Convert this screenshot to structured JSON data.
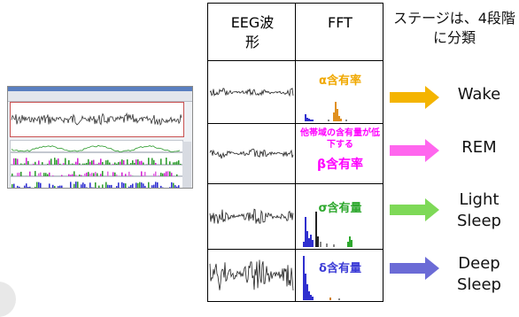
{
  "header": {
    "eeg_col": "EEG波形",
    "fft_col": "FFT"
  },
  "note": "ステージは、4段階に分類",
  "rows": [
    {
      "stage": "Wake",
      "label": "α含有率",
      "label_color": "#f0a800",
      "arrow_color": "#f4b400"
    },
    {
      "stage": "REM",
      "label_sub": "他帯域の含有量が低下する",
      "label": "β含有率",
      "label_color": "#ff00ff",
      "arrow_color": "#ff66ee"
    },
    {
      "stage": "Light Sleep",
      "label": "σ含有量",
      "label_color": "#2ea82e",
      "arrow_color": "#7ed957"
    },
    {
      "stage": "Deep Sleep",
      "label": "δ含有量",
      "label_color": "#3b3bd6",
      "arrow_color": "#6b6bd6"
    }
  ]
}
